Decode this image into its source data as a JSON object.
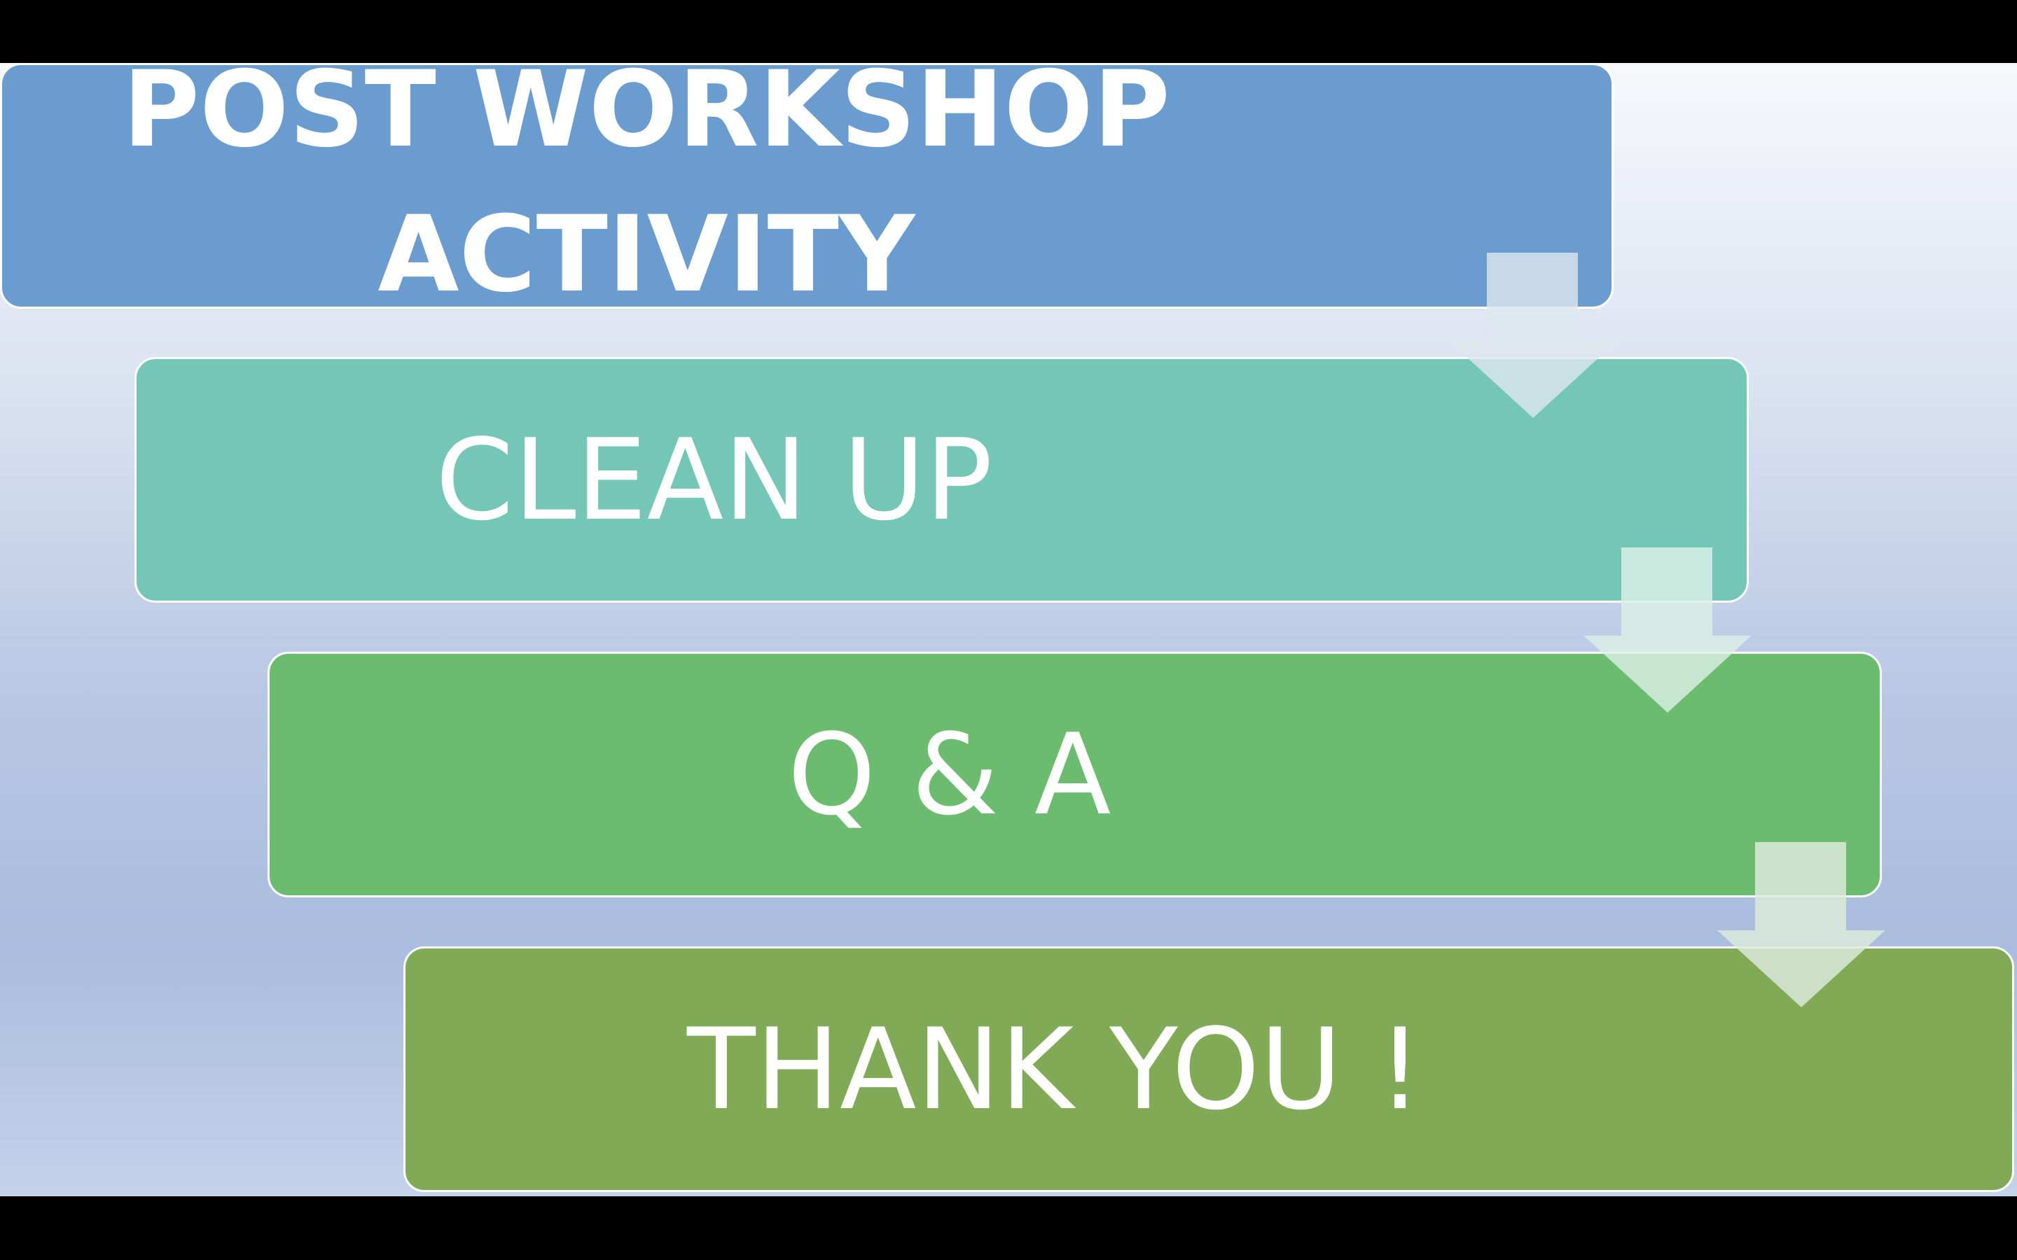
{
  "steps": [
    {
      "label": "POST WORKSHOP ACTIVITY",
      "color": "#6a9cd0"
    },
    {
      "label": "CLEAN UP",
      "color": "#74c6b6"
    },
    {
      "label": "Q & A",
      "color": "#6cbc6f"
    },
    {
      "label": "THANK YOU !",
      "color": "#80aa56"
    }
  ],
  "arrow_icon": "arrow-down-icon"
}
